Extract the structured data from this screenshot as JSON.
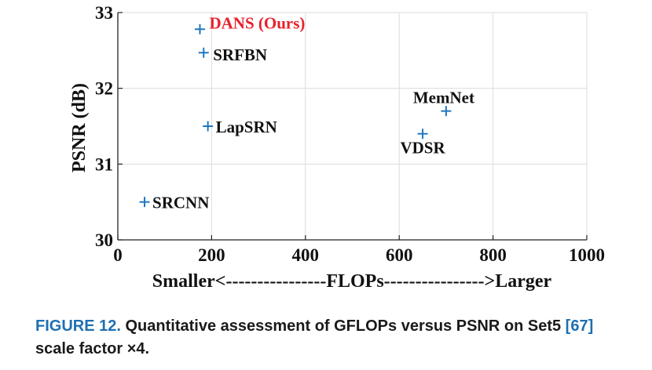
{
  "chart_data": {
    "type": "scatter",
    "xlabel": "Smaller<----------------FLOPs---------------->Larger",
    "ylabel": "PSNR (dB)",
    "xlim": [
      0,
      1000
    ],
    "ylim": [
      30,
      33
    ],
    "xticks": [
      0,
      200,
      400,
      600,
      800,
      1000
    ],
    "yticks": [
      30,
      31,
      32,
      33
    ],
    "grid": true,
    "marker": "+",
    "marker_color": "#1f77c0",
    "points": [
      {
        "label": "DANS (Ours)",
        "x": 175,
        "y": 32.78,
        "label_color": "#e8202a"
      },
      {
        "label": "SRFBN",
        "x": 183,
        "y": 32.47,
        "label_color": "#111111"
      },
      {
        "label": "LapSRN",
        "x": 192,
        "y": 31.5,
        "label_color": "#111111"
      },
      {
        "label": "SRCNN",
        "x": 57,
        "y": 30.5,
        "label_color": "#111111"
      },
      {
        "label": "MemNet",
        "x": 700,
        "y": 31.7,
        "label_color": "#111111"
      },
      {
        "label": "VDSR",
        "x": 650,
        "y": 31.4,
        "label_color": "#111111"
      }
    ]
  },
  "caption": {
    "label": "FIGURE 12.",
    "text_part1": "Quantitative assessment of GFLOPs versus PSNR on Set5",
    "ref": "[67]",
    "text_part2": "scale factor ×4."
  }
}
